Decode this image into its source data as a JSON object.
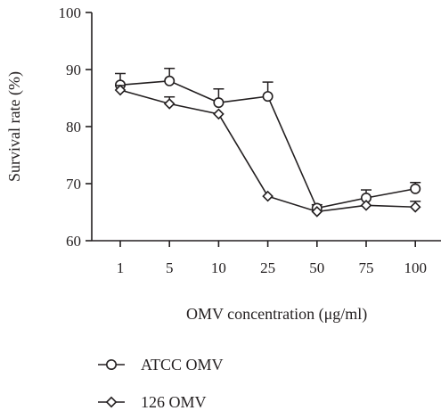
{
  "chart_data": {
    "type": "line",
    "title": "",
    "xlabel": "OMV concentration (μg/ml)",
    "ylabel": "Survival rate (%)",
    "categories": [
      "1",
      "5",
      "10",
      "25",
      "50",
      "75",
      "100"
    ],
    "ylim": [
      60,
      100
    ],
    "yticks": [
      "60",
      "70",
      "80",
      "90",
      "100"
    ],
    "grid": false,
    "legend_position": "bottom-left",
    "series": [
      {
        "name": "ATCC OMV",
        "marker": "circle",
        "color": "#231f20",
        "values": [
          87.3,
          88.0,
          84.2,
          85.3,
          65.7,
          67.5,
          69.1
        ],
        "error": [
          2.0,
          2.2,
          2.4,
          2.5,
          0.6,
          1.4,
          1.1
        ]
      },
      {
        "name": "126 OMV",
        "marker": "diamond",
        "color": "#231f20",
        "values": [
          86.4,
          84.0,
          82.2,
          67.8,
          65.1,
          66.2,
          65.9
        ],
        "error": [
          0.8,
          1.2,
          0.0,
          0.0,
          0.0,
          0.0,
          1.0
        ]
      }
    ]
  }
}
